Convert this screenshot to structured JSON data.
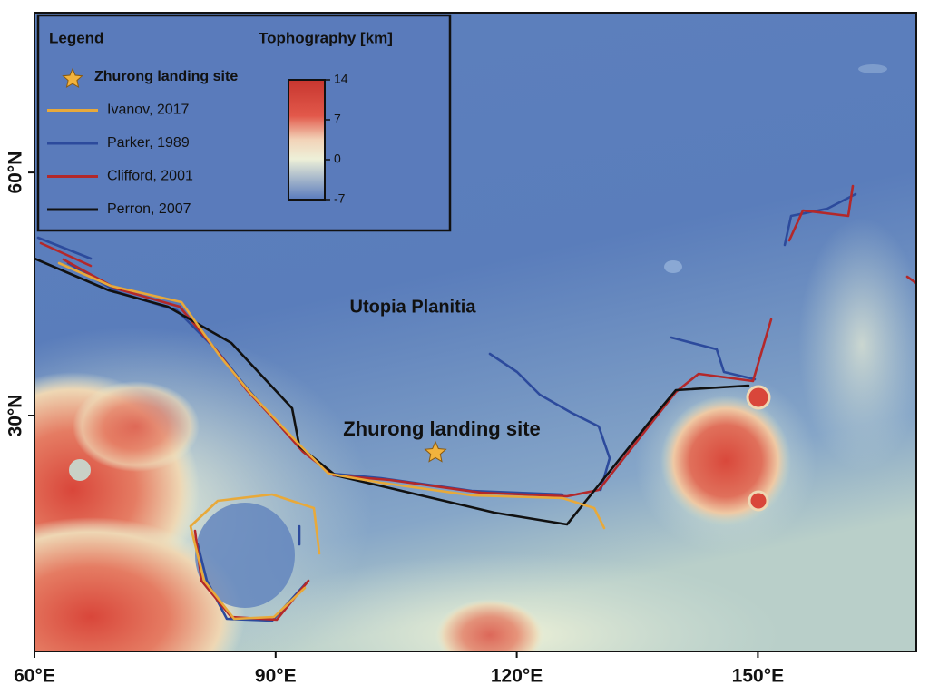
{
  "map": {
    "labels": {
      "region": "Utopia Planitia",
      "site": "Zhurong landing site"
    },
    "lon_ticks": [
      {
        "value": 60,
        "label": "60°E"
      },
      {
        "value": 90,
        "label": "90°E"
      },
      {
        "value": 120,
        "label": "120°E"
      },
      {
        "value": 150,
        "label": "150°E"
      }
    ],
    "lat_ticks": [
      {
        "value": 30,
        "label": "30°N"
      },
      {
        "value": 60,
        "label": "60°N"
      }
    ],
    "legend": {
      "title": "Legend",
      "items": [
        {
          "label": "Zhurong landing site",
          "color": "#f2b33d"
        },
        {
          "label": "Ivanov, 2017",
          "color": "#e8a93a"
        },
        {
          "label": "Parker, 1989",
          "color": "#2c4a9c"
        },
        {
          "label": "Clifford, 2001",
          "color": "#b3282a"
        },
        {
          "label": "Perron, 2007",
          "color": "#111111"
        }
      ]
    },
    "colorbar": {
      "title": "Tophography [km]",
      "ticks": [
        14,
        7,
        0,
        -7
      ],
      "range": [
        -7,
        14
      ]
    }
  }
}
